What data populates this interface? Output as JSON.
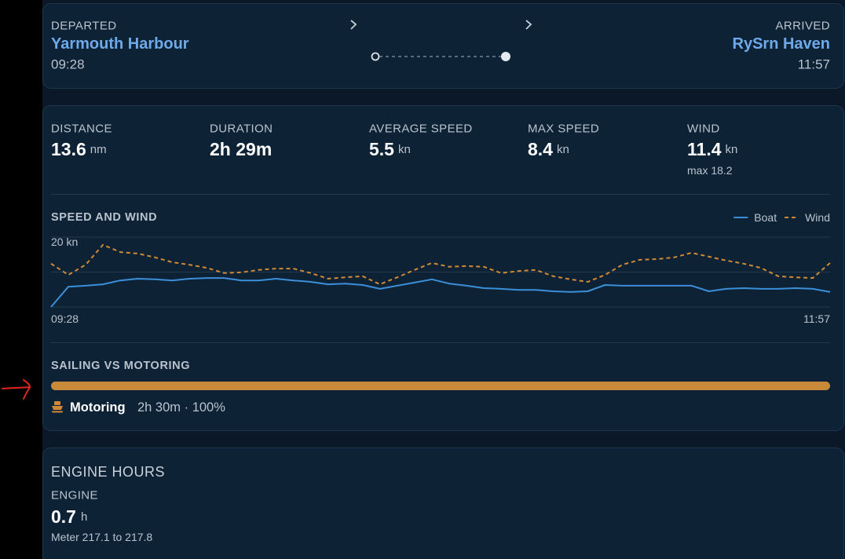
{
  "trip": {
    "departed_label": "DEPARTED",
    "departed_place": "Yarmouth Harbour",
    "departed_time": "09:28",
    "arrived_label": "ARRIVED",
    "arrived_place": "RySrn Haven",
    "arrived_time": "11:57"
  },
  "stats": [
    {
      "label": "DISTANCE",
      "value": 13.6,
      "unit": "nm"
    },
    {
      "label": "DURATION",
      "value": "2h 29m"
    },
    {
      "label": "AVERAGE SPEED",
      "value": 5.5,
      "unit": "kn"
    },
    {
      "label": "MAX SPEED",
      "value": 8.4,
      "unit": "kn"
    },
    {
      "label": "WIND",
      "value": 11.4,
      "unit": "kn",
      "sub": "max 18.2"
    }
  ],
  "chart_data": {
    "type": "line",
    "title": "SPEED AND WIND",
    "categories": [
      "09:28",
      null,
      null,
      null,
      null,
      null,
      null,
      null,
      null,
      null,
      null,
      null,
      null,
      null,
      null,
      null,
      null,
      null,
      null,
      null,
      null,
      null,
      null,
      null,
      null,
      null,
      null,
      null,
      null,
      null,
      null,
      null,
      null,
      null,
      null,
      null,
      null,
      null,
      null,
      null,
      null,
      null,
      null,
      null,
      null,
      "11:57"
    ],
    "series": [
      {
        "name": "Boat",
        "color": "#3b8fd9",
        "line_style": "solid",
        "values": [
          0,
          5.8,
          6.1,
          6.5,
          7.6,
          8.1,
          7.9,
          7.6,
          8.1,
          8.3,
          8.3,
          7.6,
          7.6,
          8.1,
          7.6,
          7.2,
          6.5,
          6.7,
          6.3,
          5.2,
          6.1,
          7.0,
          7.9,
          6.7,
          6.1,
          5.4,
          5.2,
          4.9,
          4.9,
          4.5,
          4.3,
          4.5,
          6.3,
          6.1,
          6.1,
          6.1,
          6.1,
          6.1,
          4.5,
          5.2,
          5.4,
          5.2,
          5.2,
          5.4,
          5.2,
          4.3
        ]
      },
      {
        "name": "Wind",
        "color": "#d08a35",
        "line_style": "dashed",
        "values": [
          12.4,
          9.2,
          12.1,
          17.8,
          15.7,
          15.3,
          14.2,
          12.8,
          12.1,
          11.2,
          9.7,
          9.9,
          10.6,
          11.0,
          11.0,
          9.7,
          8.1,
          8.5,
          8.8,
          6.5,
          8.5,
          10.6,
          12.6,
          11.5,
          11.7,
          11.5,
          9.7,
          10.3,
          10.6,
          8.8,
          7.9,
          7.2,
          9.2,
          12.1,
          13.5,
          13.7,
          14.2,
          15.5,
          14.4,
          13.3,
          12.4,
          11.2,
          8.8,
          8.5,
          8.3,
          12.6
        ]
      }
    ],
    "ylim": [
      0,
      20
    ],
    "yticks": [
      {
        "value": 0,
        "label": null
      },
      {
        "value": 10,
        "label": null
      },
      {
        "value": 20,
        "label": "20 kn"
      }
    ],
    "grid": true,
    "legend": "top-right"
  },
  "sailing": {
    "title": "SAILING VS MOTORING",
    "mode": "Motoring",
    "detail": "2h 30m · 100%",
    "percent": 100,
    "color": "#c98a3a"
  },
  "engine": {
    "title": "ENGINE HOURS",
    "label": "ENGINE",
    "value": 0.7,
    "unit": "h",
    "meter": "Meter 217.1 to 217.8"
  }
}
